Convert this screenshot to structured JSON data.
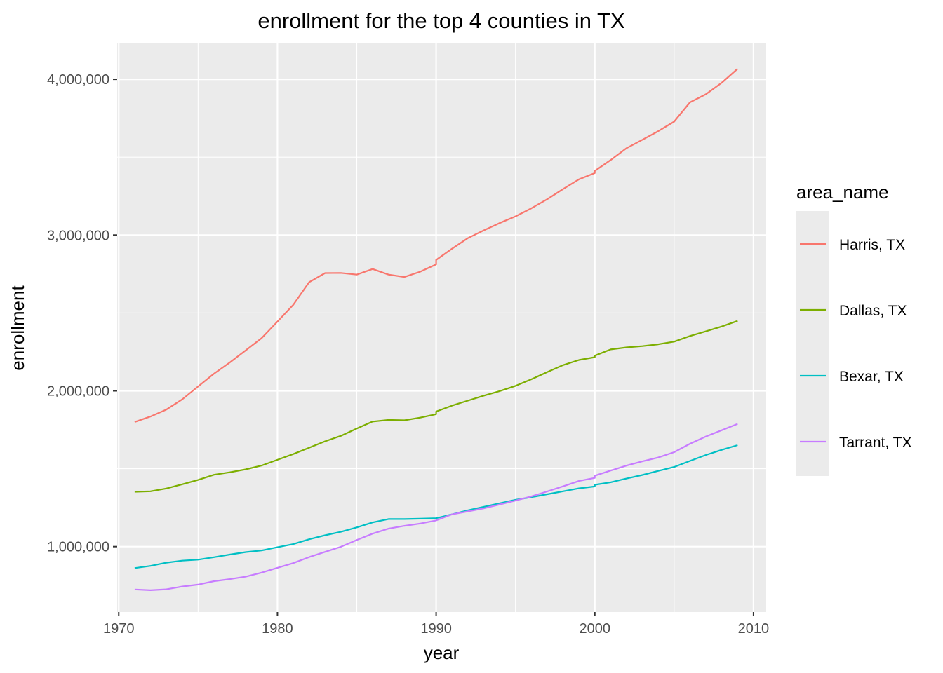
{
  "chart_data": {
    "type": "line",
    "title": "enrollment for the top 4 counties in TX",
    "xlabel": "year",
    "ylabel": "enrollment",
    "xlim": [
      1969.9,
      2010.8
    ],
    "ylim": [
      580000,
      4230000
    ],
    "x_ticks": [
      1970,
      1980,
      1990,
      2000,
      2010
    ],
    "x_tick_labels": [
      "1970",
      "1980",
      "1990",
      "2000",
      "2010"
    ],
    "y_ticks": [
      1000000,
      2000000,
      3000000,
      4000000
    ],
    "y_tick_labels": [
      "1,000,000",
      "2,000,000",
      "3,000,000",
      "4,000,000"
    ],
    "grid": true,
    "legend": {
      "title": "area_name",
      "position": "right"
    },
    "series": [
      {
        "name": "Harris, TX",
        "color": "#F8766D",
        "points": [
          [
            1971,
            1800000
          ],
          [
            1972,
            1835000
          ],
          [
            1973,
            1880000
          ],
          [
            1974,
            1945000
          ],
          [
            1975,
            2028000
          ],
          [
            1976,
            2110000
          ],
          [
            1977,
            2182000
          ],
          [
            1978,
            2260000
          ],
          [
            1979,
            2338000
          ],
          [
            1980,
            2444000
          ],
          [
            1981,
            2552000
          ],
          [
            1982,
            2698000
          ],
          [
            1983,
            2756000
          ],
          [
            1984,
            2757000
          ],
          [
            1985,
            2746000
          ],
          [
            1986,
            2782000
          ],
          [
            1987,
            2746000
          ],
          [
            1988,
            2731000
          ],
          [
            1989,
            2765000
          ],
          [
            1990,
            2812000
          ],
          [
            1990,
            2840000
          ],
          [
            1991,
            2912000
          ],
          [
            1992,
            2980000
          ],
          [
            1993,
            3030000
          ],
          [
            1994,
            3077000
          ],
          [
            1995,
            3120000
          ],
          [
            1996,
            3172000
          ],
          [
            1997,
            3230000
          ],
          [
            1998,
            3295000
          ],
          [
            1999,
            3358000
          ],
          [
            2000,
            3398000
          ],
          [
            2000,
            3412000
          ],
          [
            2001,
            3482000
          ],
          [
            2002,
            3558000
          ],
          [
            2003,
            3612000
          ],
          [
            2004,
            3667000
          ],
          [
            2005,
            3728000
          ],
          [
            2006,
            3852000
          ],
          [
            2007,
            3904000
          ],
          [
            2008,
            3978000
          ],
          [
            2009,
            4068000
          ]
        ]
      },
      {
        "name": "Dallas, TX",
        "color": "#7CAE00",
        "points": [
          [
            1971,
            1352000
          ],
          [
            1972,
            1355000
          ],
          [
            1973,
            1373000
          ],
          [
            1974,
            1400000
          ],
          [
            1975,
            1428000
          ],
          [
            1976,
            1461000
          ],
          [
            1977,
            1477000
          ],
          [
            1978,
            1496000
          ],
          [
            1979,
            1520000
          ],
          [
            1980,
            1557000
          ],
          [
            1981,
            1594000
          ],
          [
            1982,
            1635000
          ],
          [
            1983,
            1676000
          ],
          [
            1984,
            1711000
          ],
          [
            1985,
            1758000
          ],
          [
            1986,
            1803000
          ],
          [
            1987,
            1813000
          ],
          [
            1988,
            1811000
          ],
          [
            1989,
            1828000
          ],
          [
            1990,
            1850000
          ],
          [
            1990,
            1867000
          ],
          [
            1991,
            1905000
          ],
          [
            1992,
            1937000
          ],
          [
            1993,
            1969000
          ],
          [
            1994,
            1998000
          ],
          [
            1995,
            2032000
          ],
          [
            1996,
            2074000
          ],
          [
            1997,
            2120000
          ],
          [
            1998,
            2165000
          ],
          [
            1999,
            2198000
          ],
          [
            2000,
            2216000
          ],
          [
            2000,
            2226000
          ],
          [
            2001,
            2266000
          ],
          [
            2002,
            2279000
          ],
          [
            2003,
            2287000
          ],
          [
            2004,
            2299000
          ],
          [
            2005,
            2316000
          ],
          [
            2006,
            2352000
          ],
          [
            2007,
            2382000
          ],
          [
            2008,
            2413000
          ],
          [
            2009,
            2449000
          ]
        ]
      },
      {
        "name": "Bexar, TX",
        "color": "#00BFC4",
        "points": [
          [
            1971,
            862000
          ],
          [
            1972,
            876000
          ],
          [
            1973,
            897000
          ],
          [
            1974,
            910000
          ],
          [
            1975,
            916000
          ],
          [
            1976,
            932000
          ],
          [
            1977,
            949000
          ],
          [
            1978,
            965000
          ],
          [
            1979,
            975000
          ],
          [
            1980,
            996000
          ],
          [
            1981,
            1016000
          ],
          [
            1982,
            1047000
          ],
          [
            1983,
            1073000
          ],
          [
            1984,
            1095000
          ],
          [
            1985,
            1123000
          ],
          [
            1986,
            1155000
          ],
          [
            1987,
            1177000
          ],
          [
            1988,
            1177000
          ],
          [
            1989,
            1179000
          ],
          [
            1990,
            1182000
          ],
          [
            1991,
            1207000
          ],
          [
            1992,
            1233000
          ],
          [
            1993,
            1255000
          ],
          [
            1994,
            1278000
          ],
          [
            1995,
            1300000
          ],
          [
            1996,
            1317000
          ],
          [
            1997,
            1336000
          ],
          [
            1998,
            1355000
          ],
          [
            1999,
            1374000
          ],
          [
            2000,
            1386000
          ],
          [
            2000,
            1397000
          ],
          [
            2001,
            1413000
          ],
          [
            2002,
            1437000
          ],
          [
            2003,
            1460000
          ],
          [
            2004,
            1486000
          ],
          [
            2005,
            1511000
          ],
          [
            2006,
            1550000
          ],
          [
            2007,
            1588000
          ],
          [
            2008,
            1621000
          ],
          [
            2009,
            1651000
          ]
        ]
      },
      {
        "name": "Tarrant, TX",
        "color": "#C77CFF",
        "points": [
          [
            1971,
            725000
          ],
          [
            1972,
            720000
          ],
          [
            1973,
            726000
          ],
          [
            1974,
            744000
          ],
          [
            1975,
            756000
          ],
          [
            1976,
            778000
          ],
          [
            1977,
            791000
          ],
          [
            1978,
            807000
          ],
          [
            1979,
            833000
          ],
          [
            1980,
            864000
          ],
          [
            1981,
            894000
          ],
          [
            1982,
            933000
          ],
          [
            1983,
            966000
          ],
          [
            1984,
            999000
          ],
          [
            1985,
            1042000
          ],
          [
            1986,
            1083000
          ],
          [
            1987,
            1115000
          ],
          [
            1988,
            1133000
          ],
          [
            1989,
            1148000
          ],
          [
            1990,
            1168000
          ],
          [
            1991,
            1207000
          ],
          [
            1992,
            1226000
          ],
          [
            1993,
            1245000
          ],
          [
            1994,
            1270000
          ],
          [
            1995,
            1295000
          ],
          [
            1996,
            1322000
          ],
          [
            1997,
            1354000
          ],
          [
            1998,
            1387000
          ],
          [
            1999,
            1421000
          ],
          [
            2000,
            1441000
          ],
          [
            2000,
            1455000
          ],
          [
            2001,
            1488000
          ],
          [
            2002,
            1520000
          ],
          [
            2003,
            1547000
          ],
          [
            2004,
            1572000
          ],
          [
            2005,
            1606000
          ],
          [
            2006,
            1660000
          ],
          [
            2007,
            1707000
          ],
          [
            2008,
            1747000
          ],
          [
            2009,
            1788000
          ]
        ]
      }
    ]
  }
}
